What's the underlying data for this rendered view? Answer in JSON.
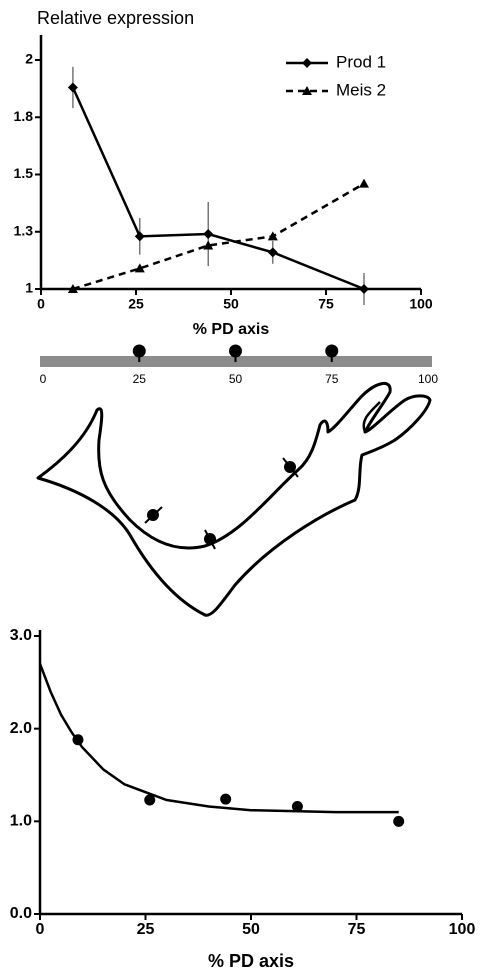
{
  "chart_data": [
    {
      "type": "line",
      "ylabel": "Relative expression",
      "xlabel": "% PD axis",
      "x": [
        8.4,
        26,
        44,
        61,
        85
      ],
      "series": [
        {
          "name": "Prod 1",
          "color": "#000000",
          "marker": "diamond",
          "dash": false,
          "line": true,
          "values": [
            1.88,
            1.23,
            1.24,
            1.16,
            1.0
          ],
          "errors": [
            0.09,
            0.08,
            0.14,
            0.05,
            0.07
          ]
        },
        {
          "name": "Meis 2",
          "color": "#000000",
          "marker": "triangle",
          "dash": true,
          "line": true,
          "values": [
            1.0,
            1.09,
            1.19,
            1.23,
            1.46
          ]
        }
      ],
      "xlim": [
        0,
        100
      ],
      "xticks": [
        0,
        25,
        50,
        75,
        100
      ],
      "ylim": [
        1,
        2
      ],
      "yticks": [
        1,
        {
          "value": 1.25,
          "label": "1.3"
        },
        1.5,
        {
          "value": 1.75,
          "label": "1.8"
        },
        2
      ],
      "legend": "top-right",
      "grid": false
    },
    {
      "type": "scatter",
      "xlabel": "% PD axis",
      "series": [
        {
          "color": "#000000",
          "marker": "circle",
          "line": false,
          "dash": false,
          "x": [
            9,
            26,
            44,
            61,
            85
          ],
          "values": [
            1.88,
            1.23,
            1.24,
            1.16,
            1.0
          ]
        },
        {
          "color": "#000000",
          "marker": "none",
          "line": true,
          "dash": false,
          "x": [
            0,
            2.5,
            5,
            7.5,
            10,
            15,
            20,
            30,
            40,
            50,
            60,
            70,
            85
          ],
          "values": [
            2.7,
            2.4,
            2.15,
            1.96,
            1.8,
            1.56,
            1.4,
            1.23,
            1.16,
            1.12,
            1.11,
            1.1,
            1.1
          ]
        }
      ],
      "xlim": [
        0,
        100
      ],
      "xticks": [
        0,
        25,
        50,
        75,
        100
      ],
      "ylim": [
        0,
        3
      ],
      "yticks": [
        {
          "value": 0,
          "label": "0.0"
        },
        {
          "value": 1,
          "label": "1.0"
        },
        {
          "value": 2,
          "label": "2.0"
        },
        {
          "value": 3,
          "label": "3.0"
        }
      ],
      "grid": false
    }
  ],
  "pd_ruler": {
    "xlim": [
      0,
      100
    ],
    "ticks": [
      0,
      25,
      50,
      75,
      100
    ],
    "markers": [
      25,
      50,
      75
    ]
  }
}
